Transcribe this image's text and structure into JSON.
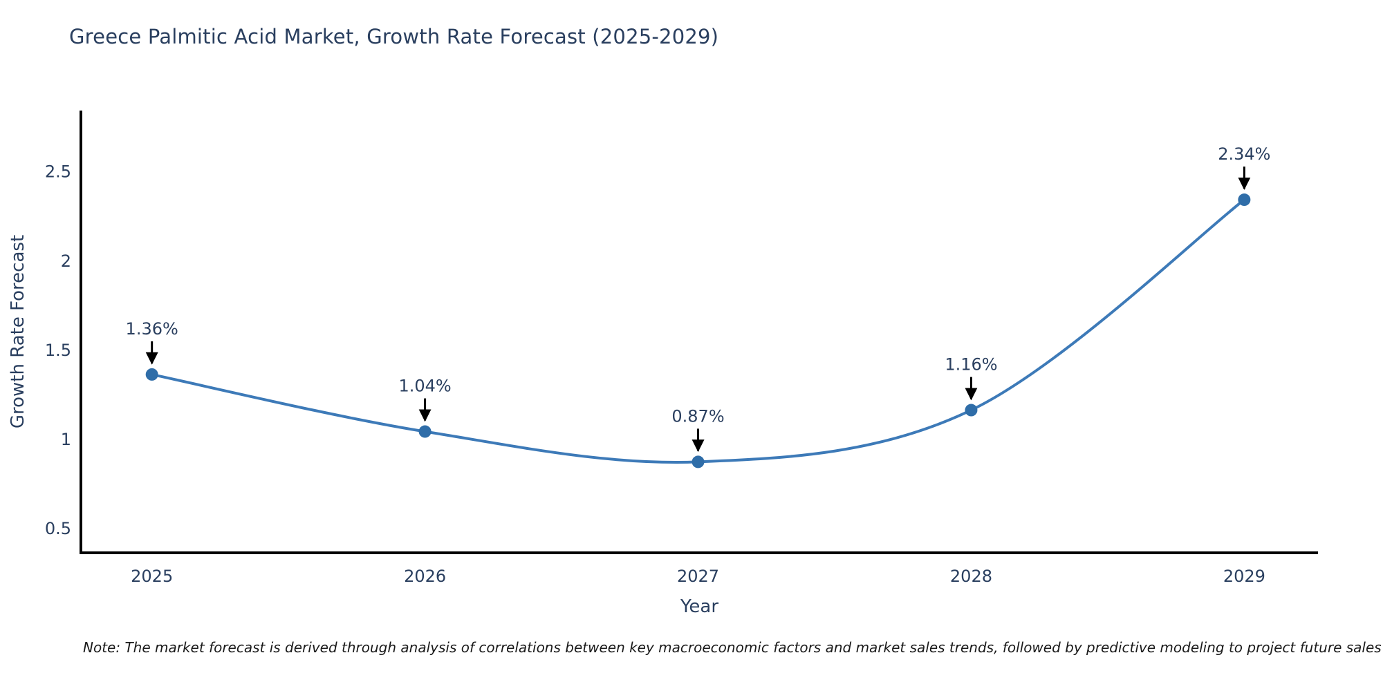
{
  "title": "Greece Palmitic Acid Market, Growth Rate Forecast (2025-2029)",
  "note": "Note: The market forecast is derived through analysis of correlations between key macroeconomic factors and market sales trends, followed by predictive modeling to project future sales",
  "chart_data": {
    "type": "line",
    "line_shape": "spline",
    "title": "Greece Palmitic Acid Market, Growth Rate Forecast (2025-2029)",
    "xlabel": "Year",
    "ylabel": "Growth Rate Forecast",
    "categories": [
      "2025",
      "2026",
      "2027",
      "2028",
      "2029"
    ],
    "x": [
      2025,
      2026,
      2027,
      2028,
      2029
    ],
    "series": [
      {
        "name": "Growth Rate Forecast",
        "values": [
          1.36,
          1.04,
          0.87,
          1.16,
          2.34
        ]
      }
    ],
    "point_labels": [
      "1.36%",
      "1.04%",
      "0.87%",
      "1.16%",
      "2.34%"
    ],
    "ytick_labels": [
      "0.5",
      "1",
      "1.5",
      "2",
      "2.5"
    ],
    "yticks": [
      0.5,
      1,
      1.5,
      2,
      2.5
    ],
    "ylim": [
      0.36,
      2.84
    ],
    "xlim": [
      2024.74,
      2029.27
    ],
    "grid": false,
    "legend_position": "none",
    "colors": {
      "line": "#3d7ab8",
      "marker": "#2f6da8",
      "axis": "#000000",
      "labels": "#2a3f5f",
      "annotation_arrow": "#000000",
      "background": "#ffffff"
    }
  }
}
